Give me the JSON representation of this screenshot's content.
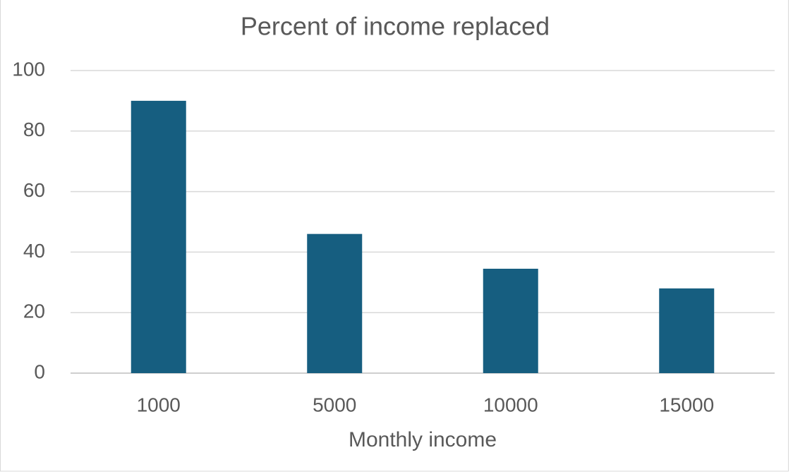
{
  "chart_data": {
    "type": "bar",
    "title": "Percent of income replaced",
    "x_label": "Monthly income",
    "categories": [
      "1000",
      "5000",
      "10000",
      "15000"
    ],
    "values": [
      90,
      46,
      34.5,
      28
    ],
    "color": "#165e80",
    "ylim": [
      0,
      100
    ],
    "yticks": [
      0,
      20,
      40,
      60,
      80,
      100
    ],
    "grid": true
  }
}
